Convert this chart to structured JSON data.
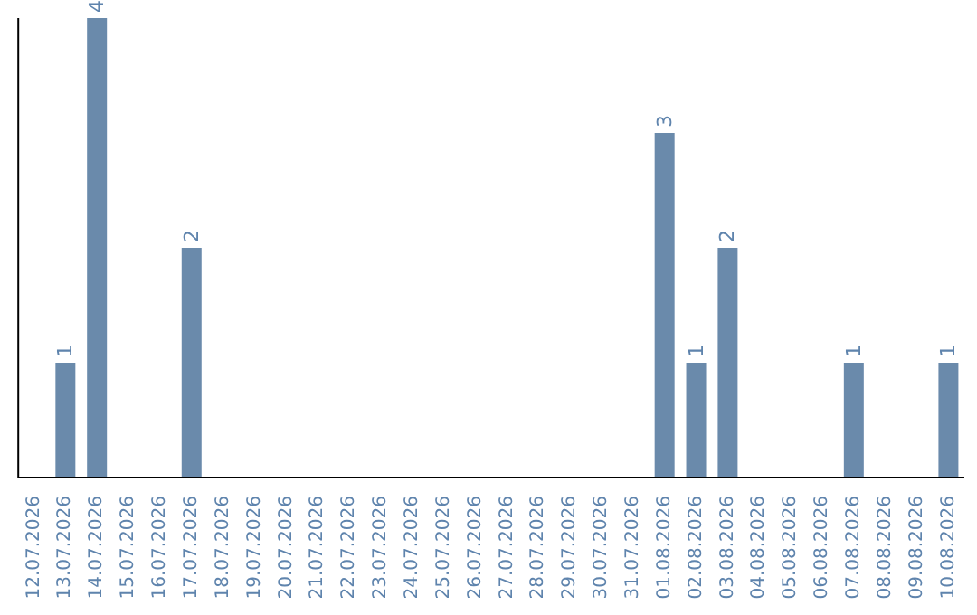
{
  "chart_data": {
    "type": "bar",
    "categories": [
      "12.07.2026",
      "13.07.2026",
      "14.07.2026",
      "15.07.2026",
      "16.07.2026",
      "17.07.2026",
      "18.07.2026",
      "19.07.2026",
      "20.07.2026",
      "21.07.2026",
      "22.07.2026",
      "23.07.2026",
      "24.07.2026",
      "25.07.2026",
      "26.07.2026",
      "27.07.2026",
      "28.07.2026",
      "29.07.2026",
      "30.07.2026",
      "31.07.2026",
      "01.08.2026",
      "02.08.2026",
      "03.08.2026",
      "04.08.2026",
      "05.08.2026",
      "06.08.2026",
      "07.08.2026",
      "08.08.2026",
      "09.08.2026",
      "10.08.2026"
    ],
    "values": [
      0,
      1,
      4,
      0,
      0,
      2,
      0,
      0,
      0,
      0,
      0,
      0,
      0,
      0,
      0,
      0,
      0,
      0,
      0,
      0,
      3,
      1,
      2,
      0,
      0,
      0,
      1,
      0,
      0,
      1
    ],
    "value_labels": [
      null,
      "1",
      "4",
      null,
      null,
      "2",
      null,
      null,
      null,
      null,
      null,
      null,
      null,
      null,
      null,
      null,
      null,
      null,
      null,
      null,
      "3",
      "1",
      "2",
      null,
      null,
      null,
      "1",
      null,
      null,
      "1"
    ],
    "color": "#6a8aab",
    "tick_labels": "x",
    "grid": false
  }
}
